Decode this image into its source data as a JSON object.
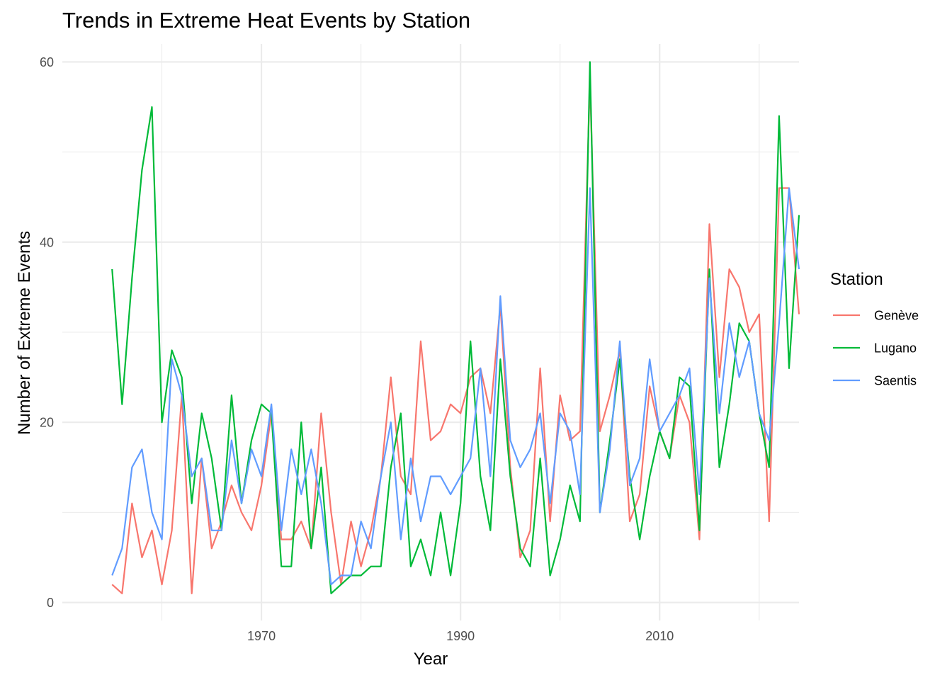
{
  "chart_data": {
    "type": "line",
    "title": "Trends in Extreme Heat Events by Station",
    "xlabel": "Year",
    "ylabel": "Number of Extreme Events",
    "xlim": [
      1950,
      2024
    ],
    "ylim": [
      -2,
      62
    ],
    "x_ticks": [
      1970,
      1990,
      2010
    ],
    "y_ticks": [
      0,
      20,
      40,
      60
    ],
    "grid": true,
    "legend": {
      "title": "Station",
      "position": "right"
    },
    "x": [
      1955,
      1956,
      1957,
      1958,
      1959,
      1960,
      1961,
      1962,
      1963,
      1964,
      1965,
      1966,
      1967,
      1968,
      1969,
      1970,
      1971,
      1972,
      1973,
      1974,
      1975,
      1976,
      1977,
      1978,
      1979,
      1980,
      1981,
      1982,
      1983,
      1984,
      1985,
      1986,
      1987,
      1988,
      1989,
      1990,
      1991,
      1992,
      1993,
      1994,
      1995,
      1996,
      1997,
      1998,
      1999,
      2000,
      2001,
      2002,
      2003,
      2004,
      2005,
      2006,
      2007,
      2008,
      2009,
      2010,
      2011,
      2012,
      2013,
      2014,
      2015,
      2016,
      2017,
      2018,
      2019,
      2020,
      2021,
      2022,
      2023,
      2024
    ],
    "series": [
      {
        "name": "Genève",
        "color": "#F8766D",
        "values": [
          2,
          1,
          11,
          5,
          8,
          2,
          8,
          23,
          1,
          16,
          6,
          9,
          13,
          10,
          8,
          13,
          21,
          7,
          7,
          9,
          6,
          21,
          10,
          2,
          9,
          4,
          8,
          14,
          25,
          14,
          12,
          29,
          18,
          19,
          22,
          21,
          25,
          26,
          21,
          33,
          15,
          5,
          8,
          26,
          9,
          23,
          18,
          19,
          58,
          19,
          23,
          28,
          9,
          12,
          24,
          19,
          16,
          23,
          20,
          7,
          42,
          25,
          37,
          35,
          30,
          32,
          9,
          46,
          46,
          32
        ]
      },
      {
        "name": "Lugano",
        "color": "#00BA38",
        "values": [
          37,
          22,
          36,
          48,
          55,
          20,
          28,
          25,
          11,
          21,
          16,
          8,
          23,
          11,
          18,
          22,
          21,
          4,
          4,
          20,
          6,
          15,
          1,
          2,
          3,
          3,
          4,
          4,
          15,
          21,
          4,
          7,
          3,
          10,
          3,
          11,
          29,
          14,
          8,
          27,
          14,
          6,
          4,
          16,
          3,
          7,
          13,
          9,
          60,
          10,
          18,
          27,
          14,
          7,
          14,
          19,
          16,
          25,
          24,
          8,
          37,
          15,
          22,
          31,
          29,
          21,
          15,
          54,
          26,
          43
        ]
      },
      {
        "name": "Saentis",
        "color": "#619CFF",
        "values": [
          3,
          6,
          15,
          17,
          10,
          7,
          27,
          23,
          14,
          16,
          8,
          8,
          18,
          11,
          17,
          14,
          22,
          8,
          17,
          12,
          17,
          11,
          2,
          3,
          3,
          9,
          6,
          14,
          20,
          7,
          16,
          9,
          14,
          14,
          12,
          14,
          16,
          26,
          14,
          34,
          18,
          15,
          17,
          21,
          11,
          21,
          19,
          12,
          46,
          10,
          17,
          29,
          13,
          16,
          27,
          19,
          21,
          23,
          26,
          12,
          36,
          21,
          31,
          25,
          29,
          21,
          18,
          31,
          46,
          37
        ]
      }
    ]
  }
}
